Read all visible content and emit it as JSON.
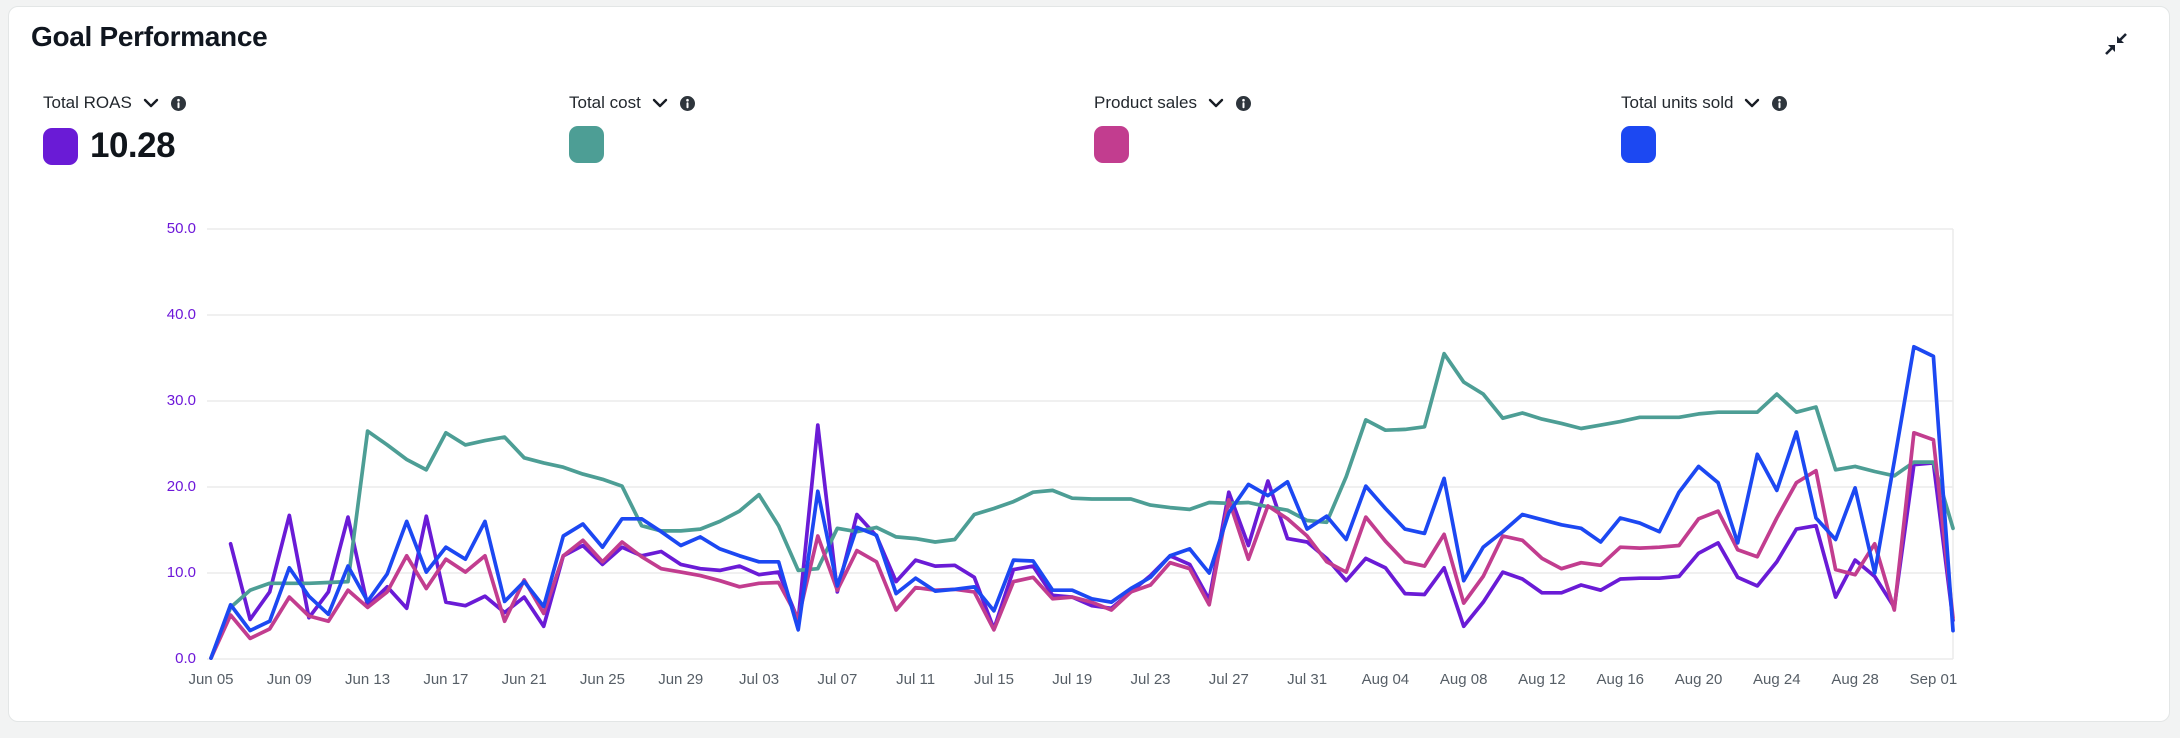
{
  "header": {
    "title": "Goal Performance",
    "collapse_icon": "collapse-diagonal-arrows"
  },
  "metrics": [
    {
      "label": "Total ROAS",
      "value": "10.28",
      "color": "#6a1bd6",
      "dropdown_icon": "chevron-down",
      "info_icon": "info"
    },
    {
      "label": "Total cost",
      "value": "",
      "color": "#4d9e95",
      "dropdown_icon": "chevron-down",
      "info_icon": "info"
    },
    {
      "label": "Product sales",
      "value": "",
      "color": "#c23d8f",
      "dropdown_icon": "chevron-down",
      "info_icon": "info"
    },
    {
      "label": "Total units sold",
      "value": "",
      "color": "#1c48f2",
      "dropdown_icon": "chevron-down",
      "info_icon": "info"
    }
  ],
  "chart_data": {
    "type": "line",
    "title": "Goal Performance",
    "xlabel": "",
    "ylabel": "",
    "ylim": [
      0,
      50
    ],
    "y_ticks": [
      "0.0",
      "10.0",
      "20.0",
      "30.0",
      "40.0",
      "50.0"
    ],
    "grid": true,
    "legend_position": "top",
    "axis_colors": {
      "y_tick": "#6d17d9",
      "x_tick": "#565e66"
    },
    "x_tick_labels": [
      "Jun 05",
      "Jun 09",
      "Jun 13",
      "Jun 17",
      "Jun 21",
      "Jun 25",
      "Jun 29",
      "Jul 03",
      "Jul 07",
      "Jul 11",
      "Jul 15",
      "Jul 19",
      "Jul 23",
      "Jul 27",
      "Jul 31",
      "Aug 04",
      "Aug 08",
      "Aug 12",
      "Aug 16",
      "Aug 20",
      "Aug 24",
      "Aug 28",
      "Sep 01"
    ],
    "x_tick_every": 4,
    "x": [
      "Jun 05",
      "Jun 06",
      "Jun 07",
      "Jun 08",
      "Jun 09",
      "Jun 10",
      "Jun 11",
      "Jun 12",
      "Jun 13",
      "Jun 14",
      "Jun 15",
      "Jun 16",
      "Jun 17",
      "Jun 18",
      "Jun 19",
      "Jun 20",
      "Jun 21",
      "Jun 22",
      "Jun 23",
      "Jun 24",
      "Jun 25",
      "Jun 26",
      "Jun 27",
      "Jun 28",
      "Jun 29",
      "Jun 30",
      "Jul 01",
      "Jul 02",
      "Jul 03",
      "Jul 04",
      "Jul 05",
      "Jul 06",
      "Jul 07",
      "Jul 08",
      "Jul 09",
      "Jul 10",
      "Jul 11",
      "Jul 12",
      "Jul 13",
      "Jul 14",
      "Jul 15",
      "Jul 16",
      "Jul 17",
      "Jul 18",
      "Jul 19",
      "Jul 20",
      "Jul 21",
      "Jul 22",
      "Jul 23",
      "Jul 24",
      "Jul 25",
      "Jul 26",
      "Jul 27",
      "Jul 28",
      "Jul 29",
      "Jul 30",
      "Jul 31",
      "Aug 01",
      "Aug 02",
      "Aug 03",
      "Aug 04",
      "Aug 05",
      "Aug 06",
      "Aug 07",
      "Aug 08",
      "Aug 09",
      "Aug 10",
      "Aug 11",
      "Aug 12",
      "Aug 13",
      "Aug 14",
      "Aug 15",
      "Aug 16",
      "Aug 17",
      "Aug 18",
      "Aug 19",
      "Aug 20",
      "Aug 21",
      "Aug 22",
      "Aug 23",
      "Aug 24",
      "Aug 25",
      "Aug 26",
      "Aug 27",
      "Aug 28",
      "Aug 29",
      "Aug 30",
      "Aug 31",
      "Sep 01",
      "Sep 02"
    ],
    "series": [
      {
        "name": "Total ROAS",
        "color": "#6a1bd6",
        "values": [
          null,
          13.4,
          4.6,
          7.8,
          16.7,
          4.8,
          7.8,
          16.5,
          6.2,
          8.4,
          5.9,
          16.6,
          6.6,
          6.2,
          7.3,
          5.4,
          7.2,
          3.8,
          12.0,
          13.2,
          11.0,
          13.0,
          12.0,
          12.5,
          11.0,
          10.5,
          10.3,
          10.8,
          9.8,
          10.1,
          4.5,
          27.2,
          7.8,
          16.8,
          14.3,
          9.0,
          11.5,
          10.8,
          10.9,
          9.5,
          3.5,
          10.4,
          10.8,
          7.4,
          7.2,
          6.2,
          5.9,
          7.8,
          9.7,
          12.0,
          11.0,
          6.9,
          19.4,
          13.2,
          20.7,
          14.0,
          13.6,
          11.7,
          9.1,
          11.7,
          10.6,
          7.6,
          7.5,
          10.6,
          3.8,
          6.6,
          10.1,
          9.3,
          7.7,
          7.7,
          8.6,
          8.0,
          9.3,
          9.4,
          9.4,
          9.6,
          12.3,
          13.5,
          9.5,
          8.5,
          11.3,
          15.1,
          15.5,
          7.2,
          11.5,
          9.6,
          6.0,
          22.6,
          22.8,
          4.5
        ]
      },
      {
        "name": "Total cost",
        "color": "#4d9e95",
        "values": [
          0.1,
          6.0,
          8.0,
          8.8,
          8.8,
          8.8,
          8.9,
          9.0,
          26.5,
          24.9,
          23.2,
          22.0,
          26.3,
          24.9,
          25.4,
          25.8,
          23.4,
          22.8,
          22.3,
          21.5,
          20.9,
          20.1,
          15.5,
          14.9,
          14.9,
          15.1,
          16.0,
          17.2,
          19.1,
          15.5,
          10.3,
          10.5,
          15.2,
          14.8,
          15.3,
          14.2,
          14.0,
          13.6,
          13.9,
          16.8,
          17.5,
          18.3,
          19.4,
          19.6,
          18.7,
          18.6,
          18.6,
          18.6,
          17.9,
          17.6,
          17.4,
          18.2,
          18.1,
          18.2,
          17.7,
          17.3,
          16.1,
          15.9,
          21.2,
          27.8,
          26.6,
          26.7,
          27.0,
          35.5,
          32.2,
          30.8,
          28.0,
          28.6,
          27.9,
          27.4,
          26.8,
          27.2,
          27.6,
          28.1,
          28.1,
          28.1,
          28.5,
          28.7,
          28.7,
          28.7,
          30.8,
          28.7,
          29.3,
          22.0,
          22.4,
          21.8,
          21.3,
          22.9,
          22.9,
          15.2
        ]
      },
      {
        "name": "Product sales",
        "color": "#c23d8f",
        "values": [
          0.1,
          5.1,
          2.4,
          3.5,
          7.2,
          5.0,
          4.4,
          8.0,
          6.0,
          7.8,
          12.0,
          8.2,
          11.6,
          10.1,
          12.0,
          4.4,
          9.2,
          5.3,
          12.0,
          13.8,
          11.3,
          13.6,
          11.9,
          10.5,
          10.1,
          9.7,
          9.1,
          8.4,
          8.8,
          8.9,
          4.7,
          14.3,
          8.0,
          12.6,
          11.3,
          5.7,
          8.3,
          8.0,
          8.1,
          7.8,
          3.4,
          9.0,
          9.5,
          7.0,
          7.2,
          6.6,
          5.7,
          7.8,
          8.6,
          11.2,
          10.5,
          6.3,
          18.5,
          11.6,
          17.8,
          16.3,
          14.3,
          11.3,
          10.1,
          16.5,
          13.7,
          11.3,
          10.8,
          14.5,
          6.5,
          9.6,
          14.3,
          13.8,
          11.7,
          10.5,
          11.2,
          10.9,
          13.0,
          12.9,
          13.0,
          13.2,
          16.3,
          17.2,
          12.7,
          11.9,
          16.4,
          20.5,
          21.9,
          10.4,
          9.8,
          13.4,
          5.7,
          26.3,
          25.5,
          4.8
        ]
      },
      {
        "name": "Total units sold",
        "color": "#1c48f2",
        "values": [
          0.1,
          6.3,
          3.3,
          4.4,
          10.6,
          7.3,
          5.2,
          10.8,
          6.7,
          9.9,
          16.0,
          10.1,
          13.0,
          11.6,
          16.0,
          6.7,
          9.0,
          6.1,
          14.3,
          15.7,
          13.0,
          16.3,
          16.3,
          14.8,
          13.2,
          14.2,
          12.8,
          12.0,
          11.3,
          11.3,
          3.4,
          19.5,
          8.5,
          15.3,
          14.4,
          7.6,
          9.4,
          7.9,
          8.1,
          8.4,
          5.6,
          11.5,
          11.4,
          8.0,
          8.0,
          7.0,
          6.6,
          8.2,
          9.5,
          12.0,
          12.8,
          10.0,
          17.0,
          20.3,
          19.0,
          20.6,
          15.1,
          16.6,
          13.9,
          20.1,
          17.5,
          15.1,
          14.6,
          21.0,
          9.1,
          13.0,
          14.8,
          16.8,
          16.2,
          15.6,
          15.2,
          13.6,
          16.4,
          15.8,
          14.8,
          19.4,
          22.4,
          20.5,
          13.5,
          23.8,
          19.6,
          26.4,
          16.4,
          13.9,
          19.9,
          10.0,
          23.0,
          36.3,
          35.2,
          3.3
        ]
      }
    ]
  }
}
